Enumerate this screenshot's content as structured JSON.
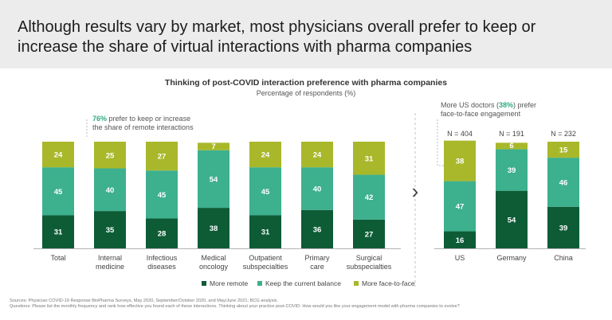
{
  "header": {
    "title": "Although results vary by market, most physicians overall prefer to keep or increase the share of virtual interactions with pharma companies"
  },
  "chart_data": {
    "type": "bar",
    "stacked": true,
    "title": "Thinking of post-COVID interaction preference with pharma companies",
    "subtitle": "Percentage of respondents (%)",
    "ylim": [
      0,
      100
    ],
    "series": [
      {
        "name": "More remote",
        "color": "#0d5c36"
      },
      {
        "name": "Keep the current balance",
        "color": "#3db08e"
      },
      {
        "name": "More face-to-face",
        "color": "#a8b82a"
      }
    ],
    "groups": [
      {
        "categories": [
          "Total",
          "Internal\nmedicine",
          "Infectious\ndiseases",
          "Medical\noncology",
          "Outpatient\nsubspecialties",
          "Primary\ncare",
          "Surgical\nsubspecialties"
        ],
        "more_remote": [
          31,
          35,
          28,
          38,
          31,
          36,
          27
        ],
        "keep_balance": [
          45,
          40,
          45,
          54,
          45,
          40,
          42
        ],
        "more_face_to_face": [
          24,
          25,
          27,
          7,
          24,
          24,
          31
        ]
      },
      {
        "categories": [
          "US",
          "Germany",
          "China"
        ],
        "n_labels": [
          "N = 404",
          "N = 191",
          "N = 232"
        ],
        "more_remote": [
          16,
          54,
          39
        ],
        "keep_balance": [
          47,
          39,
          46
        ],
        "more_face_to_face": [
          38,
          6,
          15
        ]
      }
    ],
    "annotations": [
      {
        "highlight": "76%",
        "text_line1": " prefer to keep or increase",
        "text_line2": "the share of remote interactions"
      },
      {
        "prefix": "More US doctors (",
        "highlight": "38%",
        "suffix": ") prefer",
        "text_line2": "face-to-face engagement"
      }
    ],
    "separator_glyph": "›"
  },
  "footer": {
    "sources": "Sources: Physician COVID-19 Response BioPharma Surveys, May 2020, September/October 2020, and May/June 2021; BCG analysis.",
    "questions": "Questions: Please list the monthly frequency and rank how effective you found each of these interactions. Thinking about your practice post-COVID: How would you like your engagement model with pharma companies to evolve?"
  }
}
